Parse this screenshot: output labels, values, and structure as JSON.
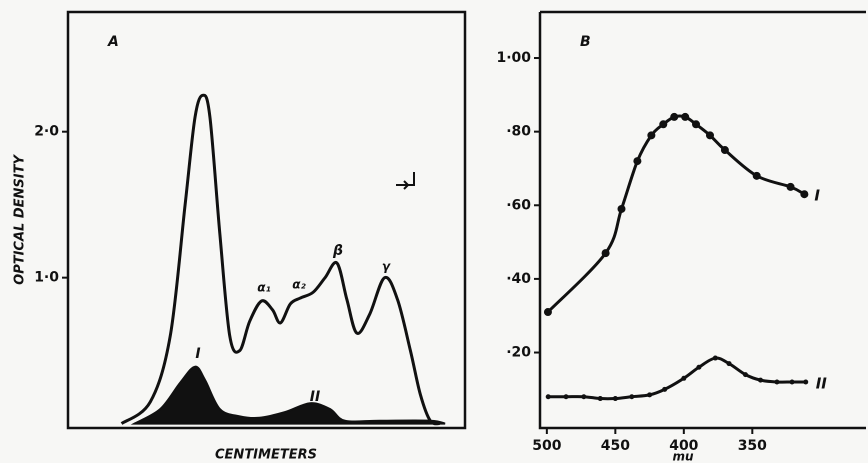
{
  "chart_data": [
    {
      "type": "line",
      "panel": "A",
      "xlabel": "CENTIMETERS",
      "ylabel": "OPTICAL DENSITY",
      "annotations": [
        "I",
        "II",
        "α₁",
        "α₂",
        "β",
        "γ"
      ],
      "xlim": [
        0,
        40
      ],
      "ylim": [
        -0.03,
        2.82
      ],
      "yticks": [
        {
          "value": 2,
          "label": "2·0"
        },
        {
          "value": 1,
          "label": "1·0"
        }
      ],
      "series": [
        {
          "color": "#111111",
          "fill": false,
          "x": [
            5.4,
            8.3,
            10.3,
            11.8,
            12.8,
            13.6,
            14.3,
            15.3,
            16.3,
            17.3,
            18.3,
            19.5,
            20.6,
            21.4,
            22.4,
            23.4,
            24.7,
            25.9,
            27.1,
            28.1,
            29.1,
            30.4,
            31.9,
            33.2,
            34.5,
            35.5,
            36.5,
            37.5
          ],
          "values": [
            0,
            0.15,
            0.6,
            1.5,
            2.1,
            2.25,
            2.1,
            1.3,
            0.6,
            0.5,
            0.7,
            0.84,
            0.78,
            0.69,
            0.82,
            0.86,
            0.9,
            1.0,
            1.1,
            0.85,
            0.62,
            0.75,
            1.0,
            0.85,
            0.5,
            0.2,
            0.02,
            0
          ]
        },
        {
          "color": "#111111",
          "fill": true,
          "x": [
            6.7,
            9.3,
            11.3,
            12.8,
            13.8,
            15.3,
            17.3,
            19.3,
            21.9,
            24.4,
            26.4,
            27.9,
            31.4,
            36.5,
            38
          ],
          "values": [
            0,
            0.1,
            0.28,
            0.39,
            0.3,
            0.1,
            0.05,
            0.04,
            0.08,
            0.14,
            0.1,
            0.02,
            0.02,
            0.02,
            0
          ]
        }
      ]
    },
    {
      "type": "line",
      "panel": "B",
      "xlabel": "mu",
      "xlim": [
        505,
        267
      ],
      "ylim": [
        -0.005,
        1.125
      ],
      "xticks": [
        500,
        450,
        400,
        350
      ],
      "yticks": [
        {
          "value": 0.2,
          "label": "·20"
        },
        {
          "value": 0.4,
          "label": "·40"
        },
        {
          "value": 0.6,
          "label": "·60"
        },
        {
          "value": 0.8,
          "label": "·80"
        },
        {
          "value": 1,
          "label": "1·00"
        }
      ],
      "series": [
        {
          "name": "I",
          "color": "#111111",
          "fill": false,
          "markers": true,
          "x": [
            499.2,
            457.1,
            445.5,
            433.9,
            423.7,
            415.0,
            407.0,
            399.0,
            391.1,
            380.9,
            370.0,
            346.8,
            322.1,
            312
          ],
          "values": [
            0.31,
            0.47,
            0.59,
            0.72,
            0.79,
            0.82,
            0.84,
            0.84,
            0.82,
            0.79,
            0.75,
            0.68,
            0.65,
            0.63
          ]
        },
        {
          "name": "II",
          "color": "#111111",
          "fill": false,
          "markers": true,
          "x": [
            499,
            486,
            473,
            461,
            450,
            438,
            425,
            414,
            400,
            389,
            377,
            367,
            355,
            344,
            332,
            321,
            311
          ],
          "values": [
            0.08,
            0.08,
            0.08,
            0.075,
            0.075,
            0.08,
            0.085,
            0.1,
            0.13,
            0.16,
            0.185,
            0.17,
            0.14,
            0.125,
            0.12,
            0.12,
            0.12
          ]
        }
      ]
    }
  ]
}
